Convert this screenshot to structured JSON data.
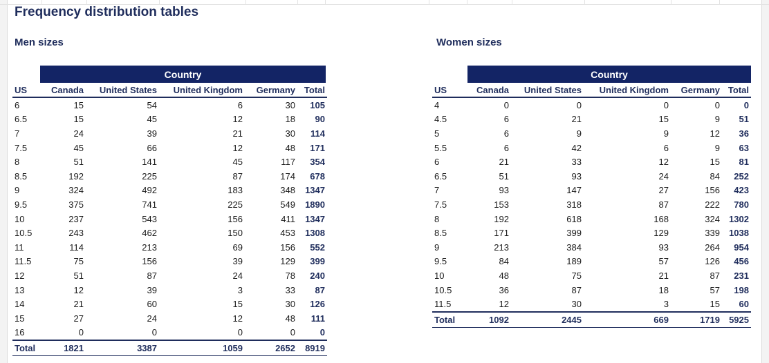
{
  "title": "Frequency distribution tables",
  "men": {
    "title": "Men sizes",
    "country_label": "Country",
    "headers": [
      "US",
      "Canada",
      "United States",
      "United Kingdom",
      "Germany",
      "Total"
    ],
    "rows": [
      [
        "6",
        "15",
        "54",
        "6",
        "30",
        "105"
      ],
      [
        "6.5",
        "15",
        "45",
        "12",
        "18",
        "90"
      ],
      [
        "7",
        "24",
        "39",
        "21",
        "30",
        "114"
      ],
      [
        "7.5",
        "45",
        "66",
        "12",
        "48",
        "171"
      ],
      [
        "8",
        "51",
        "141",
        "45",
        "117",
        "354"
      ],
      [
        "8.5",
        "192",
        "225",
        "87",
        "174",
        "678"
      ],
      [
        "9",
        "324",
        "492",
        "183",
        "348",
        "1347"
      ],
      [
        "9.5",
        "375",
        "741",
        "225",
        "549",
        "1890"
      ],
      [
        "10",
        "237",
        "543",
        "156",
        "411",
        "1347"
      ],
      [
        "10.5",
        "243",
        "462",
        "150",
        "453",
        "1308"
      ],
      [
        "11",
        "114",
        "213",
        "69",
        "156",
        "552"
      ],
      [
        "11.5",
        "75",
        "156",
        "39",
        "129",
        "399"
      ],
      [
        "12",
        "51",
        "87",
        "24",
        "78",
        "240"
      ],
      [
        "13",
        "12",
        "39",
        "3",
        "33",
        "87"
      ],
      [
        "14",
        "21",
        "60",
        "15",
        "30",
        "126"
      ],
      [
        "15",
        "27",
        "24",
        "12",
        "48",
        "111"
      ],
      [
        "16",
        "0",
        "0",
        "0",
        "0",
        "0"
      ]
    ],
    "total": [
      "Total",
      "1821",
      "3387",
      "1059",
      "2652",
      "8919"
    ]
  },
  "women": {
    "title": "Women sizes",
    "country_label": "Country",
    "headers": [
      "US",
      "Canada",
      "United States",
      "United Kingdom",
      "Germany",
      "Total"
    ],
    "rows": [
      [
        "4",
        "0",
        "0",
        "0",
        "0",
        "0"
      ],
      [
        "4.5",
        "6",
        "21",
        "15",
        "9",
        "51"
      ],
      [
        "5",
        "6",
        "9",
        "9",
        "12",
        "36"
      ],
      [
        "5.5",
        "6",
        "42",
        "6",
        "9",
        "63"
      ],
      [
        "6",
        "21",
        "33",
        "12",
        "15",
        "81"
      ],
      [
        "6.5",
        "51",
        "93",
        "24",
        "84",
        "252"
      ],
      [
        "7",
        "93",
        "147",
        "27",
        "156",
        "423"
      ],
      [
        "7.5",
        "153",
        "318",
        "87",
        "222",
        "780"
      ],
      [
        "8",
        "192",
        "618",
        "168",
        "324",
        "1302"
      ],
      [
        "8.5",
        "171",
        "399",
        "129",
        "339",
        "1038"
      ],
      [
        "9",
        "213",
        "384",
        "93",
        "264",
        "954"
      ],
      [
        "9.5",
        "84",
        "189",
        "57",
        "126",
        "456"
      ],
      [
        "10",
        "48",
        "75",
        "21",
        "87",
        "231"
      ],
      [
        "10.5",
        "36",
        "87",
        "18",
        "57",
        "198"
      ],
      [
        "11.5",
        "12",
        "30",
        "3",
        "15",
        "60"
      ]
    ],
    "total": [
      "Total",
      "1092",
      "2445",
      "669",
      "1719",
      "5925"
    ]
  }
}
